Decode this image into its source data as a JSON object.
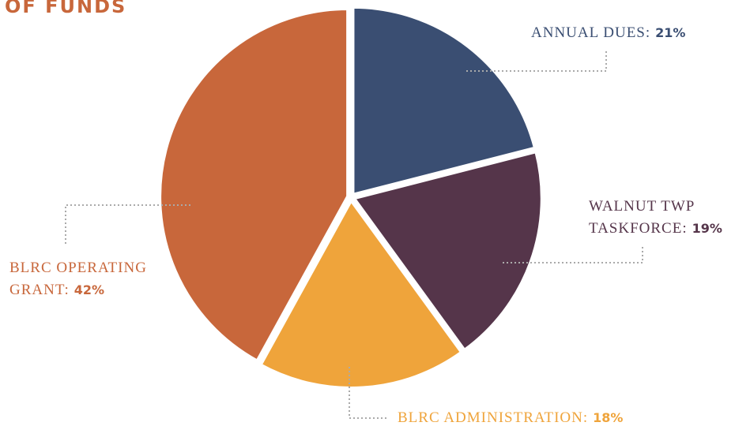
{
  "chart_data": {
    "type": "pie",
    "title": "OF FUNDS",
    "categories": [
      "ANNUAL DUES:",
      "WALNUT TWP TASKFORCE:",
      "BLRC ADMINISTRATION:",
      "BLRC OPERATING GRANT:"
    ],
    "values": [
      21,
      19,
      18,
      42
    ],
    "value_labels": [
      "21%",
      "19%",
      "18%",
      "42%"
    ],
    "colors": [
      "#3a4e72",
      "#55354a",
      "#efa43b",
      "#c8673b"
    ]
  }
}
